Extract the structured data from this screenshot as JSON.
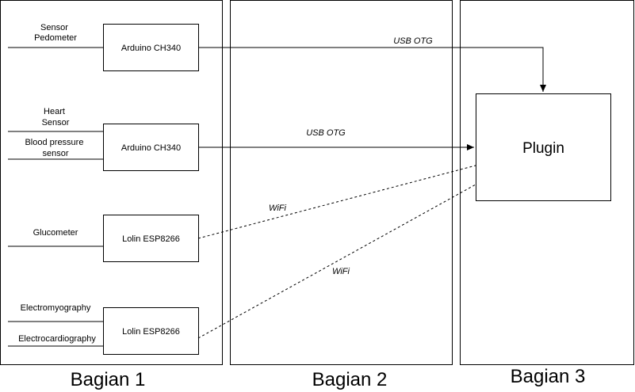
{
  "sections": [
    {
      "label": "Bagian 1"
    },
    {
      "label": "Bagian 2"
    },
    {
      "label": "Bagian 3"
    }
  ],
  "nodes": {
    "arduino1": "Arduino CH340",
    "arduino2": "Arduino CH340",
    "lolin1": "Lolin ESP8266",
    "lolin2": "Lolin ESP8266",
    "plugin": "Plugin"
  },
  "inputs": {
    "sensor_pedometer": [
      "Sensor",
      "Pedometer"
    ],
    "heart_sensor": [
      "Heart",
      "Sensor"
    ],
    "blood_pressure": [
      "Blood pressure",
      "sensor"
    ],
    "glucometer": "Glucometer",
    "electromyography": "Electromyography",
    "electrocardiography": "Electrocardiography"
  },
  "edges": {
    "usb_otg_1": "USB OTG",
    "usb_otg_2": "USB OTG",
    "wifi_1": "WiFi",
    "wifi_2": "WiFi"
  },
  "colors": {
    "stroke": "#000000",
    "background": "#ffffff"
  }
}
